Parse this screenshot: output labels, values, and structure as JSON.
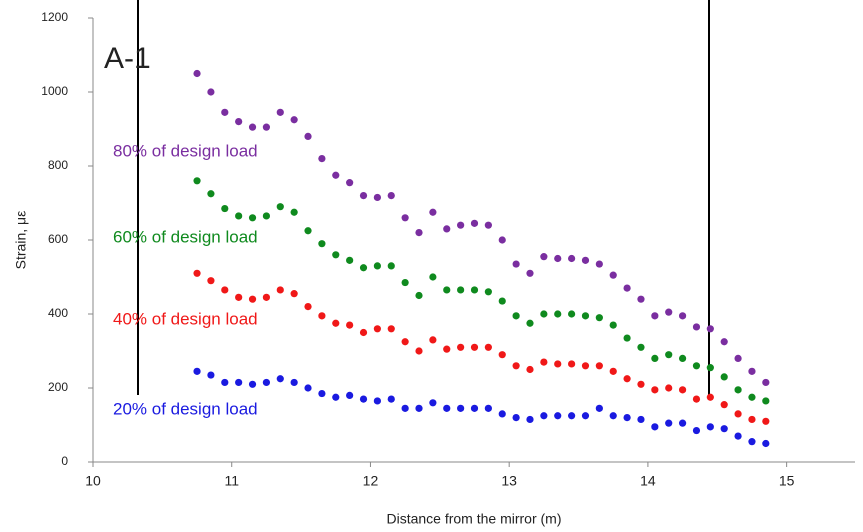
{
  "chart_data": {
    "type": "scatter",
    "annotation": "A-1",
    "x_label": "Distance from the mirror (m)",
    "y_label": "Strain, με",
    "xlim": [
      10,
      15.5
    ],
    "xticks": [
      10,
      11,
      12,
      13,
      14,
      15
    ],
    "ylim": [
      0,
      1200
    ],
    "yticks": [
      0,
      200,
      400,
      600,
      800,
      1000,
      1200
    ],
    "grid": false,
    "x": [
      10.75,
      10.85,
      10.95,
      11.05,
      11.15,
      11.25,
      11.35,
      11.45,
      11.55,
      11.65,
      11.75,
      11.85,
      11.95,
      12.05,
      12.15,
      12.25,
      12.35,
      12.45,
      12.55,
      12.65,
      12.75,
      12.85,
      12.95,
      13.05,
      13.15,
      13.25,
      13.35,
      13.45,
      13.55,
      13.65,
      13.75,
      13.85,
      13.95,
      14.05,
      14.15,
      14.25,
      14.35,
      14.45,
      14.55,
      14.65,
      14.75,
      14.85
    ],
    "series": [
      {
        "name": "80% of design load",
        "color": "#7a2ea0",
        "values": [
          1050,
          1000,
          945,
          920,
          905,
          905,
          945,
          925,
          880,
          820,
          775,
          755,
          720,
          715,
          720,
          660,
          620,
          675,
          630,
          640,
          645,
          640,
          600,
          535,
          510,
          555,
          550,
          550,
          545,
          535,
          505,
          470,
          440,
          395,
          405,
          395,
          365,
          360,
          325,
          280,
          245,
          215
        ]
      },
      {
        "name": "60% of design load",
        "color": "#0f8a1e",
        "values": [
          760,
          725,
          685,
          665,
          660,
          665,
          690,
          675,
          625,
          590,
          560,
          545,
          525,
          530,
          530,
          485,
          450,
          500,
          465,
          465,
          465,
          460,
          435,
          395,
          375,
          400,
          400,
          400,
          395,
          390,
          370,
          335,
          310,
          280,
          290,
          280,
          260,
          255,
          230,
          195,
          175,
          165
        ]
      },
      {
        "name": "40% of design load",
        "color": "#f01818",
        "values": [
          510,
          490,
          465,
          445,
          440,
          445,
          465,
          455,
          420,
          395,
          375,
          370,
          350,
          360,
          360,
          325,
          300,
          330,
          305,
          310,
          310,
          310,
          290,
          260,
          250,
          270,
          265,
          265,
          260,
          260,
          245,
          225,
          210,
          195,
          200,
          195,
          170,
          175,
          155,
          130,
          115,
          110
        ]
      },
      {
        "name": "20% of design load",
        "color": "#1a1ae0",
        "values": [
          245,
          235,
          215,
          215,
          210,
          215,
          225,
          215,
          200,
          185,
          175,
          180,
          170,
          165,
          170,
          145,
          145,
          160,
          145,
          145,
          145,
          145,
          130,
          120,
          115,
          125,
          125,
          125,
          125,
          145,
          125,
          120,
          115,
          95,
          105,
          105,
          85,
          95,
          90,
          70,
          55,
          50
        ]
      }
    ]
  }
}
